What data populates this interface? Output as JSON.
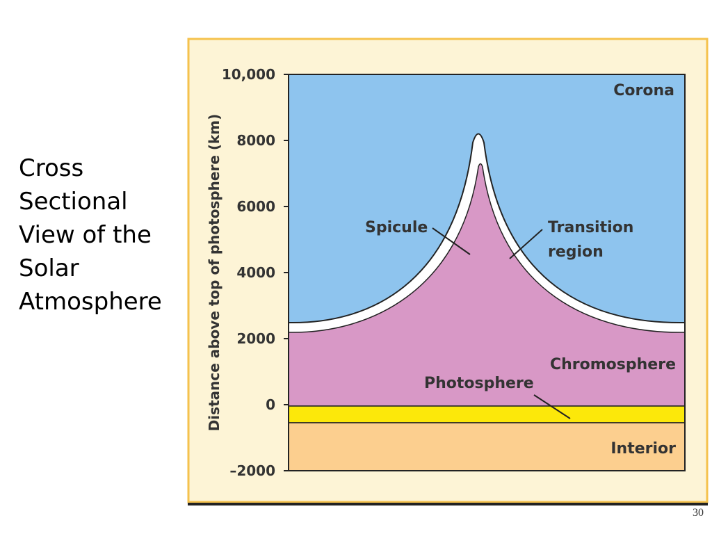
{
  "slide": {
    "title_lines": [
      "Cross",
      "Sectional",
      "View of the",
      "Solar",
      "Atmosphere"
    ],
    "page_number": "30"
  },
  "figure": {
    "y_axis_label": "Distance above top of photosphere (km)",
    "y_ticks": [
      "10,000",
      "8000",
      "6000",
      "4000",
      "2000",
      "0",
      "–2000"
    ],
    "regions": {
      "corona": "Corona",
      "spicule": "Spicule",
      "transition_region": [
        "Transition",
        "region"
      ],
      "chromosphere": "Chromosphere",
      "photosphere": "Photosphere",
      "interior": "Interior"
    }
  }
}
